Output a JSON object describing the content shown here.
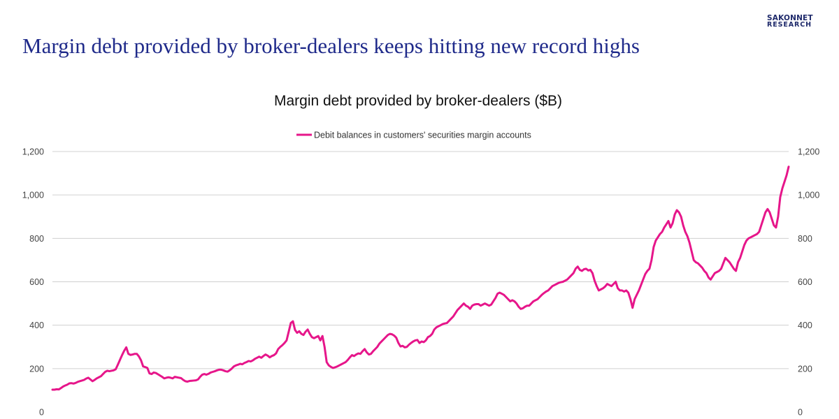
{
  "brand": {
    "line1": "SAKONNET",
    "line2": "RESEARCH"
  },
  "headline": "Margin debt provided by broker-dealers keeps hitting new record highs",
  "colors": {
    "headline": "#1f2a8a",
    "series": "#e6168a",
    "gridline": "#d0d0d0",
    "brand": "#1f2a6b"
  },
  "chart_data": {
    "type": "line",
    "title": "Margin debt provided by broker-dealers ($B)",
    "xlabel": "",
    "ylabel": "",
    "ylim": [
      0,
      1200
    ],
    "grid": true,
    "legend_position": "top-center",
    "y_ticks_left": [
      "0",
      "200",
      "400",
      "600",
      "800",
      "1,000",
      "1,200"
    ],
    "y_ticks_right": [
      "0",
      "200",
      "400",
      "600",
      "800",
      "1,000",
      "1,200"
    ],
    "series": [
      {
        "name": "Debit balances in customers' securities margin accounts",
        "values": [
          103,
          103,
          105,
          104,
          110,
          117,
          122,
          126,
          132,
          133,
          131,
          134,
          139,
          142,
          145,
          148,
          154,
          158,
          150,
          142,
          148,
          155,
          160,
          165,
          175,
          185,
          190,
          188,
          190,
          192,
          197,
          218,
          240,
          262,
          282,
          298,
          268,
          263,
          265,
          268,
          268,
          256,
          238,
          210,
          207,
          203,
          178,
          175,
          182,
          180,
          174,
          168,
          162,
          155,
          158,
          160,
          158,
          155,
          162,
          160,
          158,
          156,
          148,
          142,
          140,
          143,
          144,
          145,
          146,
          150,
          162,
          172,
          175,
          172,
          176,
          182,
          185,
          188,
          192,
          195,
          195,
          192,
          188,
          186,
          192,
          200,
          210,
          215,
          218,
          222,
          220,
          226,
          230,
          235,
          233,
          238,
          245,
          250,
          255,
          250,
          258,
          265,
          260,
          252,
          258,
          262,
          270,
          290,
          300,
          308,
          318,
          330,
          370,
          410,
          418,
          378,
          365,
          372,
          360,
          355,
          370,
          380,
          360,
          345,
          340,
          345,
          350,
          330,
          350,
          300,
          230,
          215,
          208,
          203,
          206,
          210,
          215,
          220,
          225,
          230,
          240,
          252,
          262,
          258,
          265,
          270,
          268,
          280,
          290,
          275,
          265,
          268,
          280,
          290,
          300,
          315,
          325,
          335,
          345,
          355,
          360,
          358,
          352,
          342,
          318,
          302,
          305,
          298,
          300,
          310,
          318,
          325,
          330,
          332,
          318,
          325,
          322,
          330,
          345,
          350,
          360,
          380,
          390,
          395,
          400,
          405,
          408,
          410,
          420,
          430,
          440,
          455,
          470,
          480,
          490,
          500,
          490,
          485,
          475,
          490,
          495,
          497,
          497,
          490,
          495,
          500,
          495,
          490,
          495,
          510,
          525,
          545,
          550,
          545,
          540,
          530,
          520,
          510,
          515,
          510,
          500,
          485,
          475,
          478,
          485,
          490,
          490,
          500,
          510,
          515,
          520,
          530,
          540,
          548,
          555,
          560,
          570,
          580,
          585,
          590,
          595,
          598,
          600,
          605,
          610,
          620,
          630,
          640,
          660,
          670,
          655,
          650,
          658,
          660,
          652,
          655,
          640,
          605,
          580,
          560,
          565,
          570,
          578,
          590,
          585,
          580,
          590,
          600,
          570,
          560,
          560,
          555,
          560,
          550,
          520,
          480,
          520,
          540,
          560,
          585,
          610,
          635,
          650,
          660,
          700,
          760,
          790,
          805,
          820,
          830,
          850,
          865,
          880,
          850,
          870,
          910,
          930,
          920,
          900,
          860,
          830,
          810,
          780,
          740,
          700,
          690,
          685,
          675,
          665,
          650,
          640,
          620,
          610,
          625,
          640,
          645,
          650,
          660,
          685,
          710,
          700,
          690,
          675,
          660,
          650,
          690,
          710,
          740,
          770,
          790,
          800,
          805,
          810,
          815,
          820,
          830,
          860,
          890,
          920,
          935,
          920,
          890,
          860,
          850,
          900,
          990,
          1030,
          1060,
          1090,
          1130
        ]
      }
    ]
  }
}
